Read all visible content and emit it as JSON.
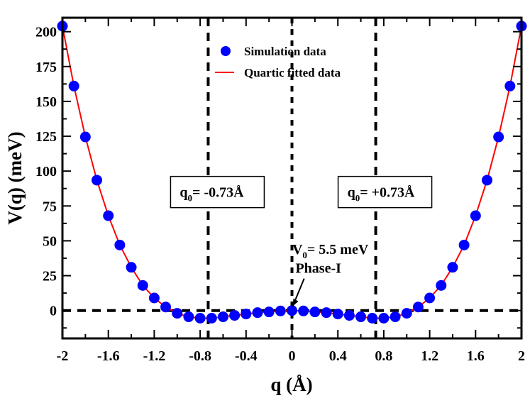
{
  "chart_data": {
    "type": "scatter",
    "title": "",
    "xlabel": "q (Å)",
    "ylabel": "V(q) (meV)",
    "xlim": [
      -2,
      2
    ],
    "ylim": [
      -20,
      210
    ],
    "x_ticks": [
      -2,
      -1.6,
      -1.2,
      -0.8,
      -0.4,
      0,
      0.4,
      0.8,
      1.2,
      1.6,
      2
    ],
    "x_tick_labels": [
      "-2",
      "-1.6",
      "-1.2",
      "-0.8",
      "-0.4",
      "0",
      "0.4",
      "0.8",
      "1.2",
      "1.6",
      "2"
    ],
    "y_ticks": [
      0,
      25,
      50,
      75,
      100,
      125,
      150,
      175,
      200
    ],
    "y_tick_labels": [
      "0",
      "25",
      "50",
      "75",
      "100",
      "125",
      "150",
      "175",
      "200"
    ],
    "grid": false,
    "legend_position": "top-center",
    "series": [
      {
        "name": "Simulation data",
        "kind": "scatter",
        "color": "#0000ff",
        "x": [
          -2.0,
          -1.9,
          -1.8,
          -1.7,
          -1.6,
          -1.5,
          -1.4,
          -1.3,
          -1.2,
          -1.1,
          -1.0,
          -0.9,
          -0.8,
          -0.7,
          -0.6,
          -0.5,
          -0.4,
          -0.3,
          -0.2,
          -0.1,
          0.0,
          0.1,
          0.2,
          0.3,
          0.4,
          0.5,
          0.6,
          0.7,
          0.8,
          0.9,
          1.0,
          1.1,
          1.2,
          1.3,
          1.4,
          1.5,
          1.6,
          1.7,
          1.8,
          1.9,
          2.0
        ],
        "y": [
          204,
          161,
          124.5,
          93.5,
          68,
          47,
          31,
          18,
          9,
          2.5,
          -2,
          -4.5,
          -5.5,
          -5.5,
          -4.5,
          -3.5,
          -2.5,
          -1.5,
          -1,
          -0.3,
          0,
          -0.3,
          -1,
          -1.5,
          -2.5,
          -3.5,
          -4.5,
          -5.5,
          -5.5,
          -4.5,
          -2,
          2.5,
          9,
          18,
          31,
          47,
          68,
          93.5,
          124.5,
          161,
          204
        ]
      },
      {
        "name": "Quartic fitted data",
        "kind": "line",
        "color": "#ff0000",
        "x": [
          -2.0,
          -1.9,
          -1.8,
          -1.7,
          -1.6,
          -1.5,
          -1.4,
          -1.3,
          -1.2,
          -1.1,
          -1.0,
          -0.9,
          -0.8,
          -0.7,
          -0.6,
          -0.5,
          -0.4,
          -0.3,
          -0.2,
          -0.1,
          0.0,
          0.1,
          0.2,
          0.3,
          0.4,
          0.5,
          0.6,
          0.7,
          0.8,
          0.9,
          1.0,
          1.1,
          1.2,
          1.3,
          1.4,
          1.5,
          1.6,
          1.7,
          1.8,
          1.9,
          2.0
        ],
        "y": [
          204,
          161,
          124.5,
          93.5,
          68,
          47,
          31,
          18,
          9,
          2.5,
          -2,
          -4.5,
          -5.5,
          -5.5,
          -4.5,
          -3.5,
          -2.5,
          -1.5,
          -1,
          -0.3,
          0,
          -0.3,
          -1,
          -1.5,
          -2.5,
          -3.5,
          -4.5,
          -5.5,
          -5.5,
          -4.5,
          -2,
          2.5,
          9,
          18,
          31,
          47,
          68,
          93.5,
          124.5,
          161,
          204
        ]
      }
    ],
    "reference_lines": {
      "horizontal": [
        0
      ],
      "vertical": [
        -0.73,
        0,
        0.73
      ]
    },
    "annotations": [
      {
        "name": "q0-left",
        "main": "q",
        "sub": "0",
        "rest": "= -0.73Å",
        "x": -0.73,
        "y": 85,
        "boxed": true
      },
      {
        "name": "q0-right",
        "main": "q",
        "sub": "0",
        "rest": "= +0.73Å",
        "x": 0.73,
        "y": 85,
        "boxed": true
      },
      {
        "name": "v0-barrier",
        "main": "V",
        "sub": "0",
        "rest": "= 5.5 meV",
        "x": 0.25,
        "y": 44,
        "boxed": false
      },
      {
        "name": "phase-label",
        "text": "Phase-I",
        "x": 0.23,
        "y": 27,
        "arrow_to": [
          0,
          0
        ]
      }
    ]
  }
}
